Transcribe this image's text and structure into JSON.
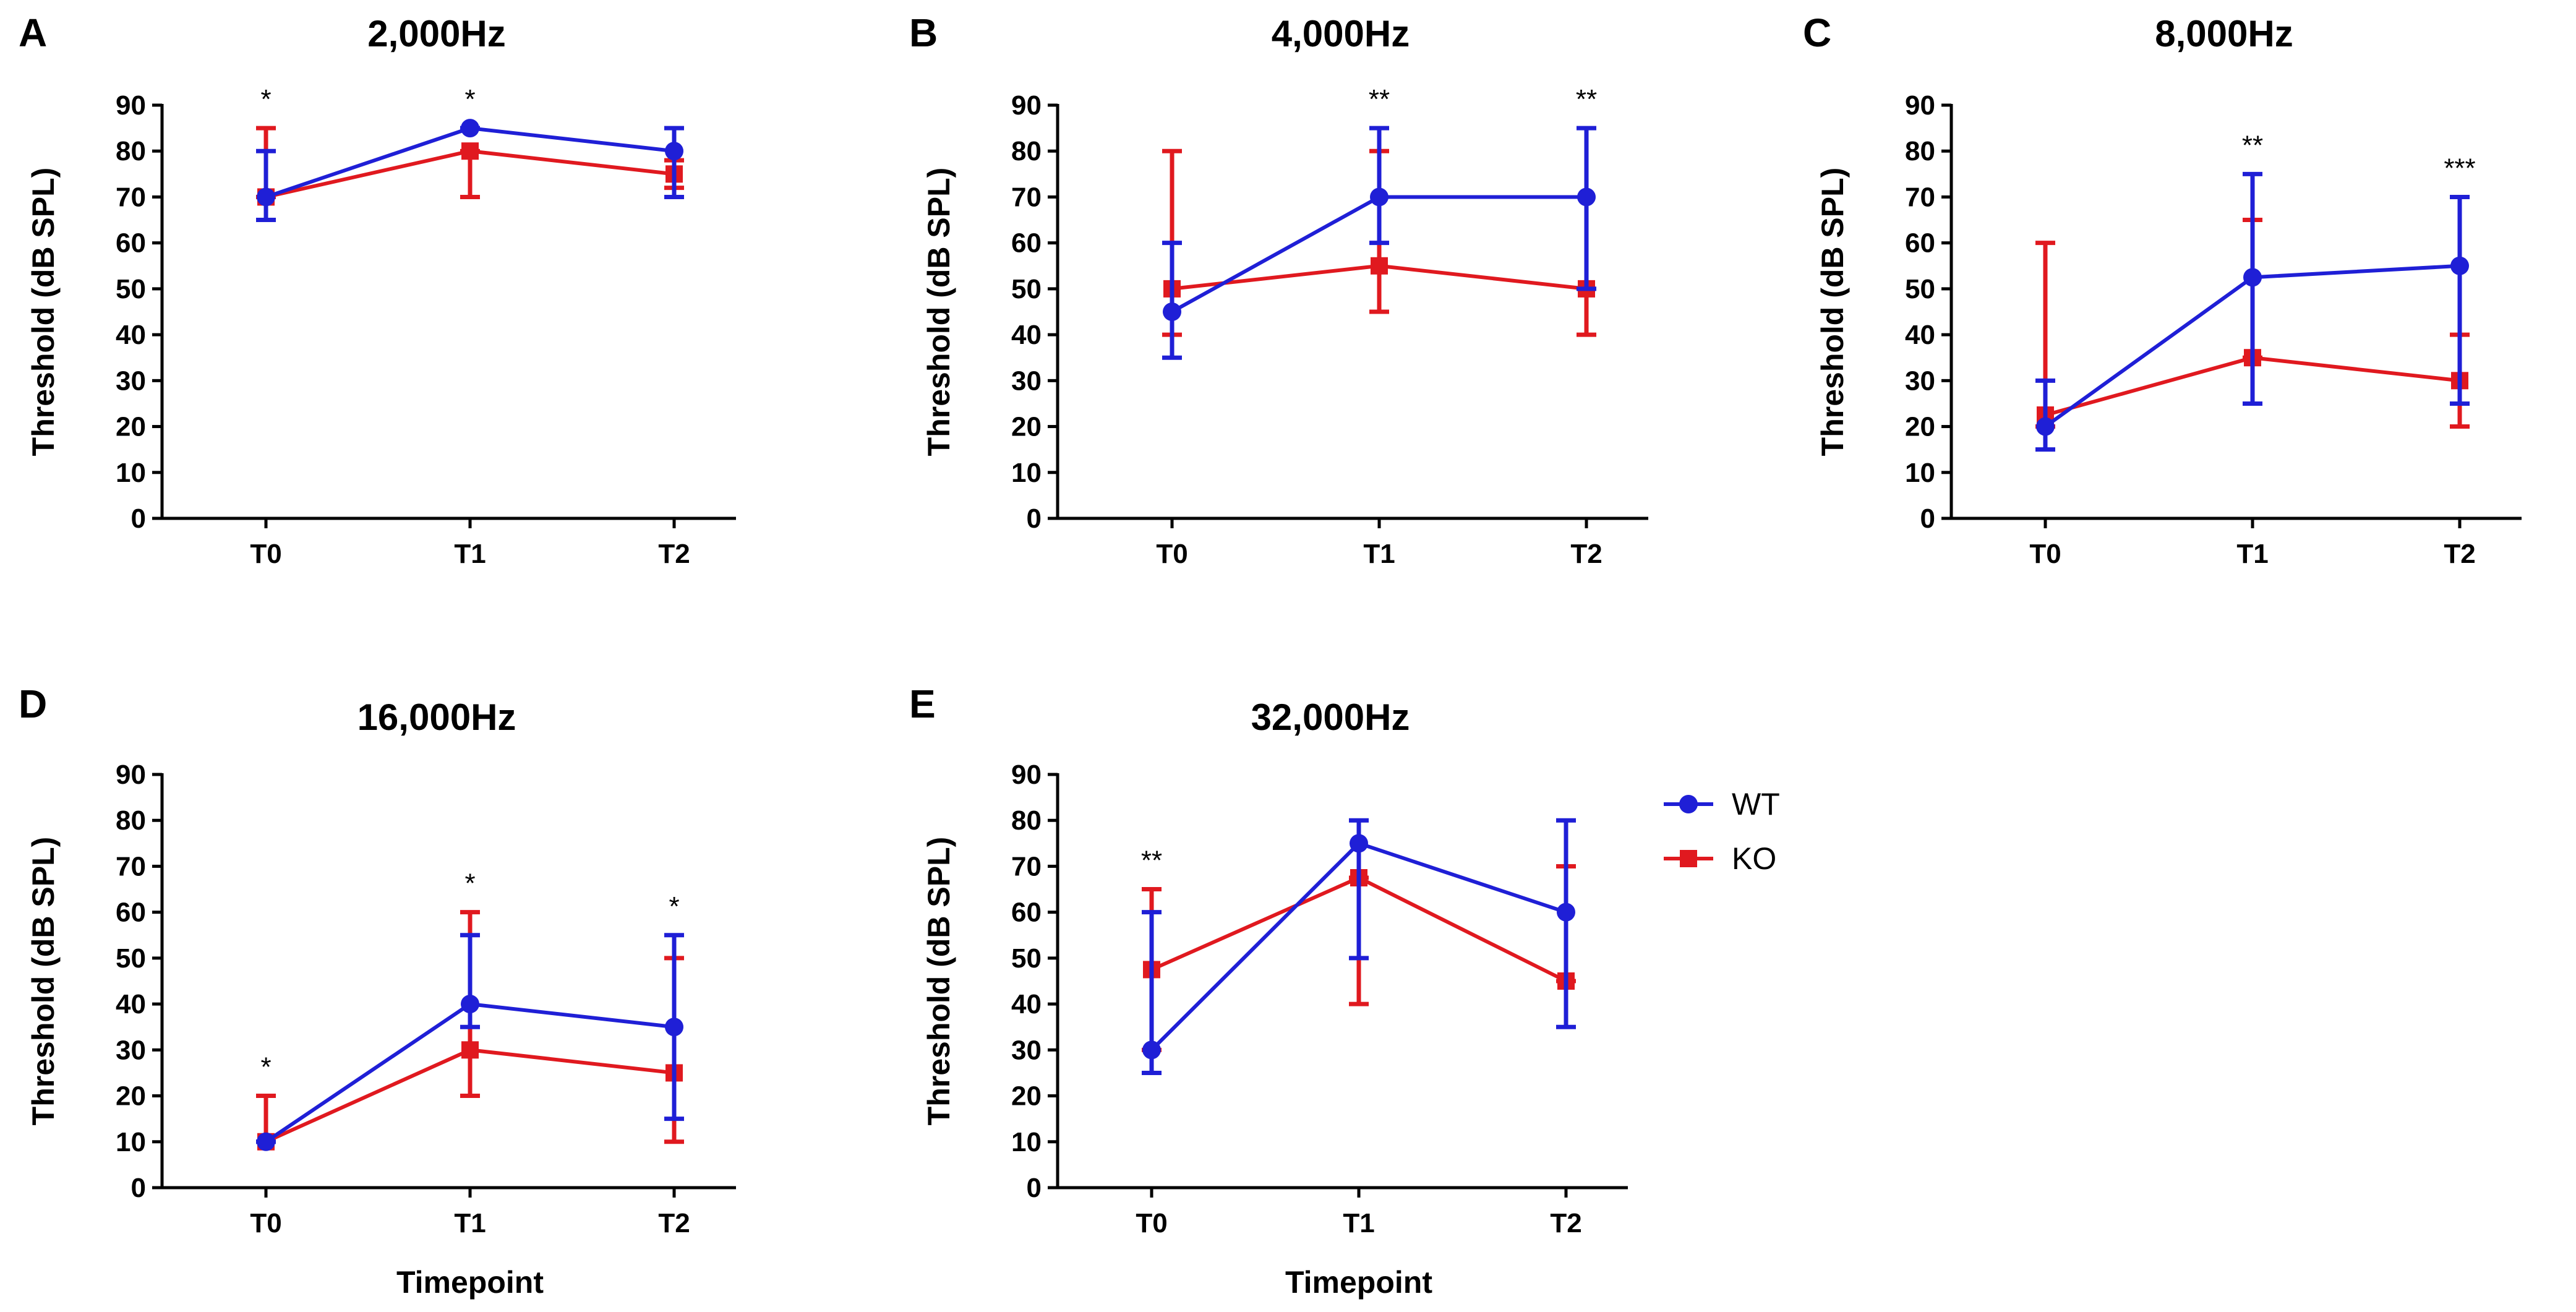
{
  "legend": {
    "entries": [
      {
        "name": "WT",
        "color": "#1f1fd6",
        "marker": "circle"
      },
      {
        "name": "KO",
        "color": "#e0191f",
        "marker": "square"
      }
    ]
  },
  "chart_data": [
    {
      "panel": "A",
      "type": "line",
      "title": "2,000Hz",
      "categories": [
        "T0",
        "T1",
        "T2"
      ],
      "ylabel": "Threshold (dB SPL)",
      "xlabel": "",
      "ylim": [
        0,
        90
      ],
      "yticks": [
        0,
        10,
        20,
        30,
        40,
        50,
        60,
        70,
        80,
        90
      ],
      "series": [
        {
          "name": "WT",
          "values": [
            70,
            85,
            80
          ],
          "err_low": [
            65,
            85,
            70
          ],
          "err_high": [
            80,
            85,
            85
          ]
        },
        {
          "name": "KO",
          "values": [
            70,
            80,
            75
          ],
          "err_low": [
            70,
            70,
            72
          ],
          "err_high": [
            85,
            80,
            78
          ]
        }
      ],
      "significance": [
        "*",
        "*",
        ""
      ]
    },
    {
      "panel": "B",
      "type": "line",
      "title": "4,000Hz",
      "categories": [
        "T0",
        "T1",
        "T2"
      ],
      "ylabel": "Threshold (dB SPL)",
      "xlabel": "",
      "ylim": [
        0,
        90
      ],
      "yticks": [
        0,
        10,
        20,
        30,
        40,
        50,
        60,
        70,
        80,
        90
      ],
      "series": [
        {
          "name": "WT",
          "values": [
            45,
            70,
            70
          ],
          "err_low": [
            35,
            60,
            50
          ],
          "err_high": [
            60,
            85,
            85
          ]
        },
        {
          "name": "KO",
          "values": [
            50,
            55,
            50
          ],
          "err_low": [
            40,
            45,
            40
          ],
          "err_high": [
            80,
            80,
            50
          ]
        }
      ],
      "significance": [
        "",
        "**",
        "**"
      ]
    },
    {
      "panel": "C",
      "type": "line",
      "title": "8,000Hz",
      "categories": [
        "T0",
        "T1",
        "T2"
      ],
      "ylabel": "Threshold (dB SPL)",
      "xlabel": "",
      "ylim": [
        0,
        90
      ],
      "yticks": [
        0,
        10,
        20,
        30,
        40,
        50,
        60,
        70,
        80,
        90
      ],
      "series": [
        {
          "name": "WT",
          "values": [
            20,
            52.5,
            55
          ],
          "err_low": [
            15,
            25,
            25
          ],
          "err_high": [
            30,
            75,
            70
          ]
        },
        {
          "name": "KO",
          "values": [
            22.5,
            35,
            30
          ],
          "err_low": [
            20,
            35,
            20
          ],
          "err_high": [
            60,
            65,
            40
          ]
        }
      ],
      "significance": [
        "",
        "**",
        "***"
      ]
    },
    {
      "panel": "D",
      "type": "line",
      "title": "16,000Hz",
      "categories": [
        "T0",
        "T1",
        "T2"
      ],
      "ylabel": "Threshold (dB SPL)",
      "xlabel": "Timepoint",
      "ylim": [
        0,
        90
      ],
      "yticks": [
        0,
        10,
        20,
        30,
        40,
        50,
        60,
        70,
        80,
        90
      ],
      "series": [
        {
          "name": "WT",
          "values": [
            10,
            40,
            35
          ],
          "err_low": [
            10,
            35,
            15
          ],
          "err_high": [
            10,
            55,
            55
          ]
        },
        {
          "name": "KO",
          "values": [
            10,
            30,
            25
          ],
          "err_low": [
            10,
            20,
            10
          ],
          "err_high": [
            20,
            60,
            50
          ]
        }
      ],
      "significance": [
        "*",
        "*",
        "*"
      ]
    },
    {
      "panel": "E",
      "type": "line",
      "title": "32,000Hz",
      "categories": [
        "T0",
        "T1",
        "T2"
      ],
      "ylabel": "Threshold (dB SPL)",
      "xlabel": "Timepoint",
      "ylim": [
        0,
        90
      ],
      "yticks": [
        0,
        10,
        20,
        30,
        40,
        50,
        60,
        70,
        80,
        90
      ],
      "series": [
        {
          "name": "WT",
          "values": [
            30,
            75,
            60
          ],
          "err_low": [
            25,
            50,
            35
          ],
          "err_high": [
            60,
            80,
            80
          ]
        },
        {
          "name": "KO",
          "values": [
            47.5,
            67.5,
            45
          ],
          "err_low": [
            30,
            40,
            45
          ],
          "err_high": [
            65,
            67.5,
            70
          ]
        }
      ],
      "significance": [
        "**",
        "",
        ""
      ]
    }
  ]
}
